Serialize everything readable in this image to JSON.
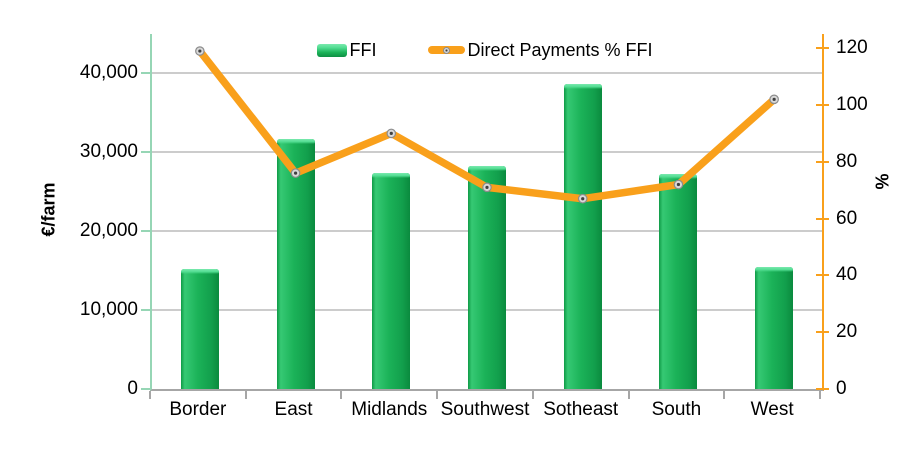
{
  "chart_data": {
    "type": "bar",
    "combo": "bar+line",
    "title": "",
    "categories": [
      "Border",
      "East",
      "Midlands",
      "Southwest",
      "Sotheast",
      "South",
      "West"
    ],
    "series": [
      {
        "name": "FFI",
        "type": "bar",
        "axis": "left",
        "values": [
          15200,
          31700,
          27400,
          28300,
          38600,
          27300,
          15500
        ]
      },
      {
        "name": "Direct Payments % FFI",
        "type": "line",
        "axis": "right",
        "values": [
          119,
          76,
          90,
          71,
          67,
          72,
          102
        ]
      }
    ],
    "left_axis": {
      "title": "€/farm",
      "tick_labels": [
        "0",
        "10,000",
        "20,000",
        "30,000",
        "40,000"
      ],
      "tick_values": [
        0,
        10000,
        20000,
        30000,
        40000
      ],
      "min": 0,
      "max": 45000
    },
    "right_axis": {
      "title": "%",
      "tick_labels": [
        "0",
        "20",
        "40",
        "60",
        "80",
        "100",
        "120"
      ],
      "tick_values": [
        0,
        20,
        40,
        60,
        80,
        100,
        120
      ],
      "min": 0,
      "max": 125
    },
    "grid": "horizontal-only",
    "legend_position": "top-center"
  },
  "colors": {
    "bar_green": "#1bb258",
    "bar_green_light": "#52dd92",
    "bar_green_dark": "#0e7e3c",
    "line_orange": "#f9a01b",
    "left_axis_line": "#96d6b5",
    "right_axis_line": "#f9a01b",
    "x_axis_line": "#a6a6a6",
    "gridline": "#cccccc",
    "marker_fill": "#d9d9d9",
    "marker_ring": "#8c8c8c",
    "marker_dot": "#404040",
    "text": "#000000",
    "background": "#ffffff"
  }
}
